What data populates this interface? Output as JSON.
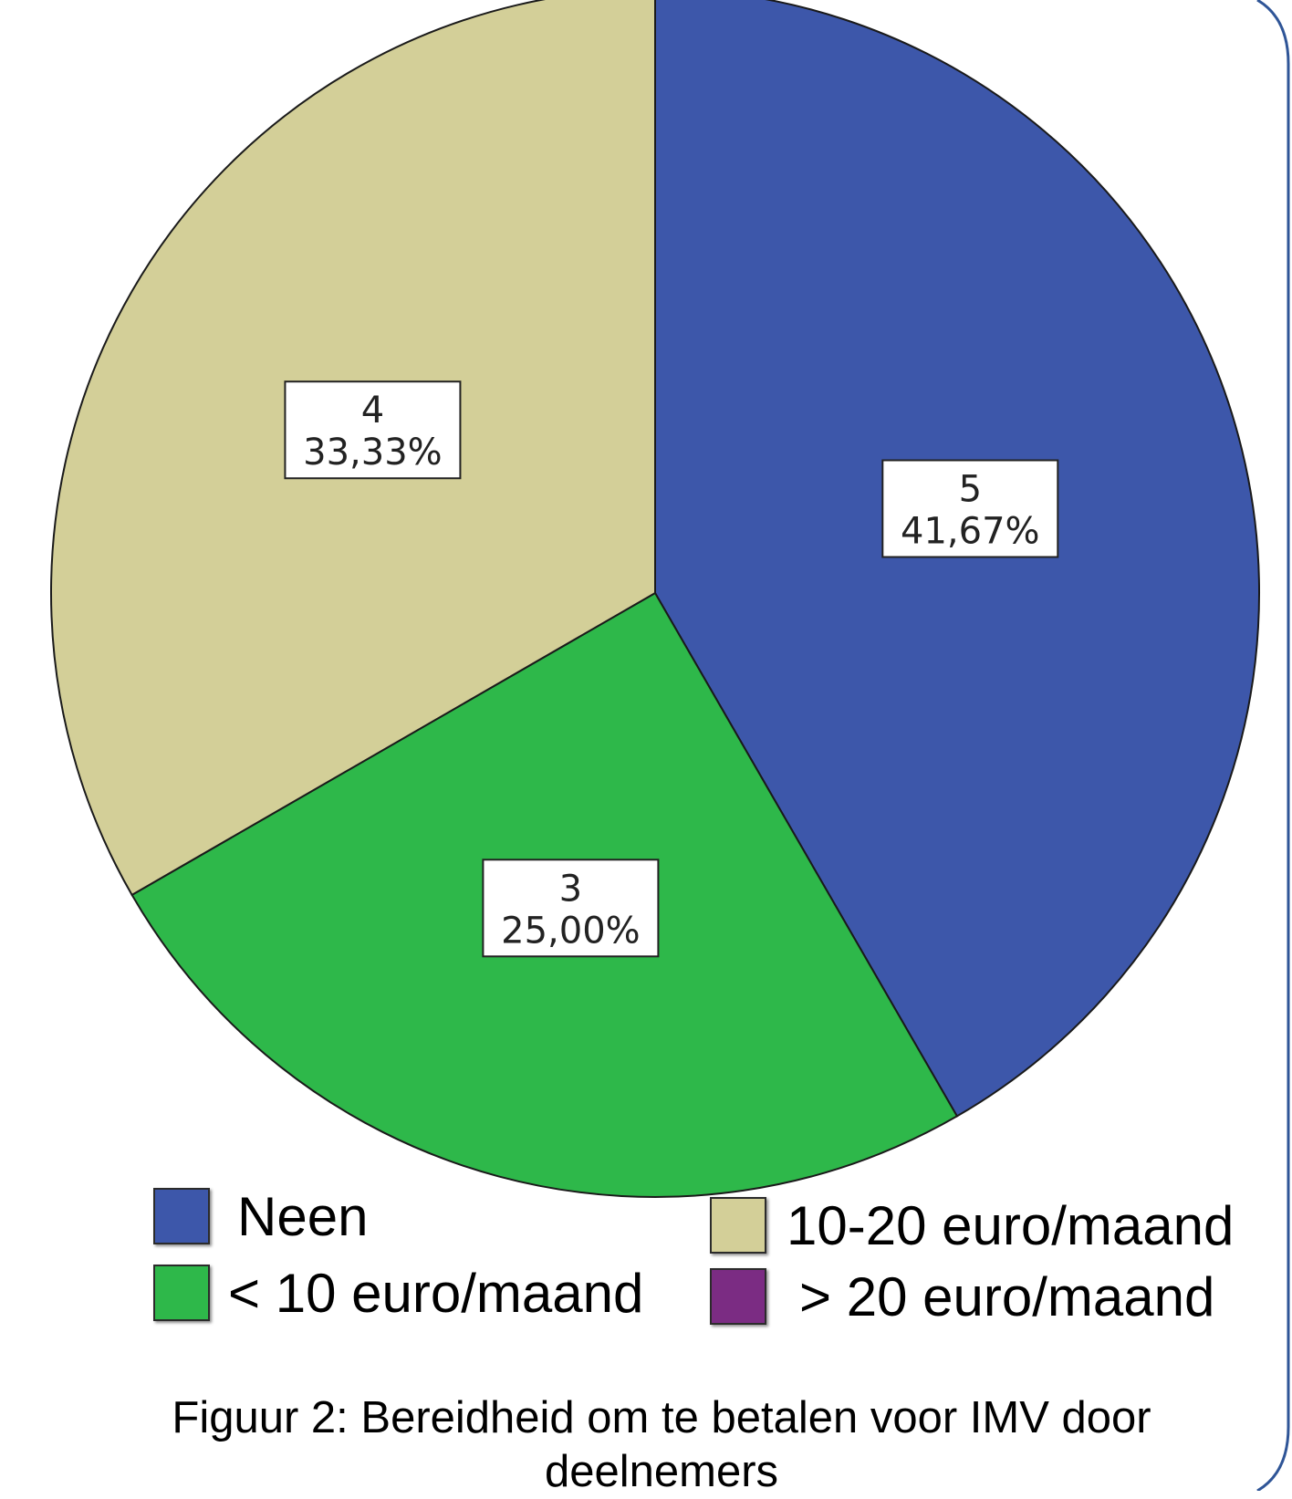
{
  "chart_data": {
    "type": "pie",
    "start_angle_deg": 0,
    "direction": "clockwise",
    "slices": [
      {
        "label": "Neen",
        "count": 5,
        "percent_label": "41,67%",
        "value": 41.67,
        "color": "#3d57aa"
      },
      {
        "label": "< 10 euro/maand",
        "count": 3,
        "percent_label": "25,00%",
        "value": 25.0,
        "color": "#2eb84a"
      },
      {
        "label": "10-20 euro/maand",
        "count": 4,
        "percent_label": "33,33%",
        "value": 33.33,
        "color": "#d3cf98"
      },
      {
        "label": "> 20 euro/maand",
        "count": 0,
        "percent_label": "",
        "value": 0,
        "color": "#7b2c83"
      }
    ],
    "legend": [
      {
        "label": "Neen",
        "color": "#3d57aa"
      },
      {
        "label": "< 10 euro/maand",
        "color": "#2eb84a"
      },
      {
        "label": "10-20 euro/maand",
        "color": "#d3cf98"
      },
      {
        "label": "> 20 euro/maand",
        "color": "#7b2c83"
      }
    ],
    "legend_placement": "bottom",
    "caption": "Figuur 2: Bereidheid om te betalen voor IMV door deelnemers"
  },
  "colors": {
    "frame": "#2f5597",
    "slice_border": "#1a1a1a"
  }
}
